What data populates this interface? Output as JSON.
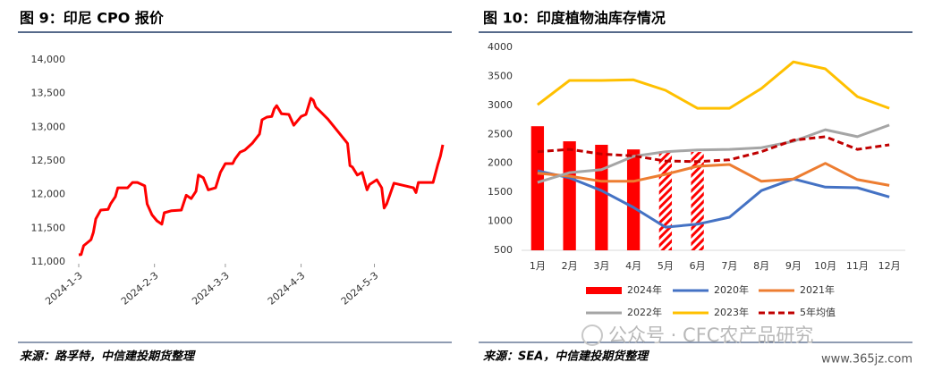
{
  "chart_data": [
    {
      "type": "line",
      "title": "图 9：印尼 CPO 报价",
      "x": [
        "2024-1-3",
        "2024-1-4",
        "2024-1-5",
        "2024-1-8",
        "2024-1-9",
        "2024-1-10",
        "2024-1-12",
        "2024-1-15",
        "2024-1-16",
        "2024-1-18",
        "2024-1-19",
        "2024-1-23",
        "2024-1-25",
        "2024-1-27",
        "2024-1-30",
        "2024-1-31",
        "2024-2-2",
        "2024-2-4",
        "2024-2-6",
        "2024-2-7",
        "2024-2-10",
        "2024-2-14",
        "2024-2-16",
        "2024-2-18",
        "2024-2-20",
        "2024-2-21",
        "2024-2-23",
        "2024-2-25",
        "2024-2-28",
        "2024-3-1",
        "2024-3-3",
        "2024-3-6",
        "2024-3-7",
        "2024-3-9",
        "2024-3-11",
        "2024-3-14",
        "2024-3-17",
        "2024-3-18",
        "2024-3-20",
        "2024-3-22",
        "2024-3-23",
        "2024-3-24",
        "2024-3-26",
        "2024-3-29",
        "2024-3-31",
        "2024-4-3",
        "2024-4-5",
        "2024-4-7",
        "2024-4-8",
        "2024-4-9",
        "2024-4-14",
        "2024-4-22",
        "2024-4-23",
        "2024-4-24",
        "2024-4-26",
        "2024-4-28",
        "2024-4-30",
        "2024-5-1",
        "2024-5-4",
        "2024-5-6",
        "2024-5-7",
        "2024-5-8",
        "2024-5-11",
        "2024-5-19",
        "2024-5-20",
        "2024-5-21",
        "2024-5-27",
        "2024-5-29",
        "2024-5-30",
        "2024-5-31"
      ],
      "series": [
        {
          "color": "#ff0000",
          "values": [
            11106,
            11110,
            11240,
            11330,
            11440,
            11640,
            11770,
            11780,
            11860,
            11970,
            12100,
            12100,
            12180,
            12180,
            12130,
            11860,
            11700,
            11610,
            11560,
            11730,
            11760,
            11770,
            11990,
            11940,
            12050,
            12290,
            12250,
            12070,
            12100,
            12330,
            12460,
            12460,
            12530,
            12630,
            12660,
            12760,
            12900,
            13110,
            13150,
            13160,
            13270,
            13320,
            13200,
            13190,
            13030,
            13160,
            13190,
            13430,
            13400,
            13300,
            13120,
            12760,
            12430,
            12410,
            12290,
            12330,
            12070,
            12150,
            12220,
            12100,
            11800,
            11860,
            12170,
            12100,
            12030,
            12180,
            12180,
            12450,
            12570,
            12740
          ]
        }
      ],
      "xticks": [
        "2024-1-3",
        "2024-2-3",
        "2024-3-3",
        "2024-4-3",
        "2024-5-3"
      ],
      "ylim": [
        11000,
        14000
      ],
      "yticks": [
        {
          "value": 11000,
          "label": "11,000"
        },
        {
          "value": 11500,
          "label": "11,500"
        },
        {
          "value": 12000,
          "label": "12,000"
        },
        {
          "value": 12500,
          "label": "12,500"
        },
        {
          "value": 13000,
          "label": "13,000"
        },
        {
          "value": 13500,
          "label": "13,500"
        },
        {
          "value": 14000,
          "label": "14,000"
        }
      ],
      "grid": false
    },
    {
      "type": "combo",
      "title": "图 10：印度植物油库存情况",
      "categories": [
        "1月",
        "2月",
        "3月",
        "4月",
        "5月",
        "6月",
        "7月",
        "8月",
        "9月",
        "10月",
        "11月",
        "12月"
      ],
      "series": [
        {
          "name": "2024年",
          "type": "bar",
          "color": "#ff0000",
          "values": [
            2640,
            2380,
            2320,
            2240,
            2195,
            2195,
            null,
            null,
            null,
            null,
            null,
            null
          ],
          "pattern": [
            "solid",
            "solid",
            "solid",
            "solid",
            "hatch",
            "hatch",
            null,
            null,
            null,
            null,
            null,
            null
          ]
        },
        {
          "name": "2020年",
          "type": "line",
          "color": "#4472c4",
          "values": [
            1870,
            1750,
            1530,
            1240,
            900,
            950,
            1070,
            1530,
            1730,
            1590,
            1580,
            1420
          ]
        },
        {
          "name": "2021年",
          "type": "line",
          "color": "#ed7d31",
          "values": [
            1830,
            1780,
            1690,
            1690,
            1810,
            1950,
            1980,
            1690,
            1730,
            2000,
            1720,
            1620
          ]
        },
        {
          "name": "2022年",
          "type": "line",
          "color": "#a5a5a5",
          "values": [
            1670,
            1840,
            1890,
            2120,
            2200,
            2230,
            2240,
            2270,
            2380,
            2580,
            2460,
            2660
          ]
        },
        {
          "name": "2023年",
          "type": "line",
          "color": "#ffc000",
          "values": [
            3010,
            3430,
            3430,
            3440,
            3260,
            2950,
            2950,
            3290,
            3750,
            3630,
            3150,
            2950
          ]
        },
        {
          "name": "5年均值",
          "type": "line",
          "color": "#c00000",
          "dash": true,
          "values": [
            2200,
            2240,
            2160,
            2130,
            2040,
            2030,
            2060,
            2200,
            2400,
            2460,
            2240,
            2320
          ]
        }
      ],
      "ylim": [
        500,
        4000
      ],
      "yticks": [
        500,
        1000,
        1500,
        2000,
        2500,
        3000,
        3500,
        4000
      ],
      "grid": false,
      "legend": "bottom"
    }
  ],
  "sources": [
    "来源：路孚特，中信建投期货整理",
    "来源：SEA，中信建投期货整理"
  ],
  "watermark": [
    "公众号 · CFC农产品研究",
    "www.365jz.com"
  ]
}
